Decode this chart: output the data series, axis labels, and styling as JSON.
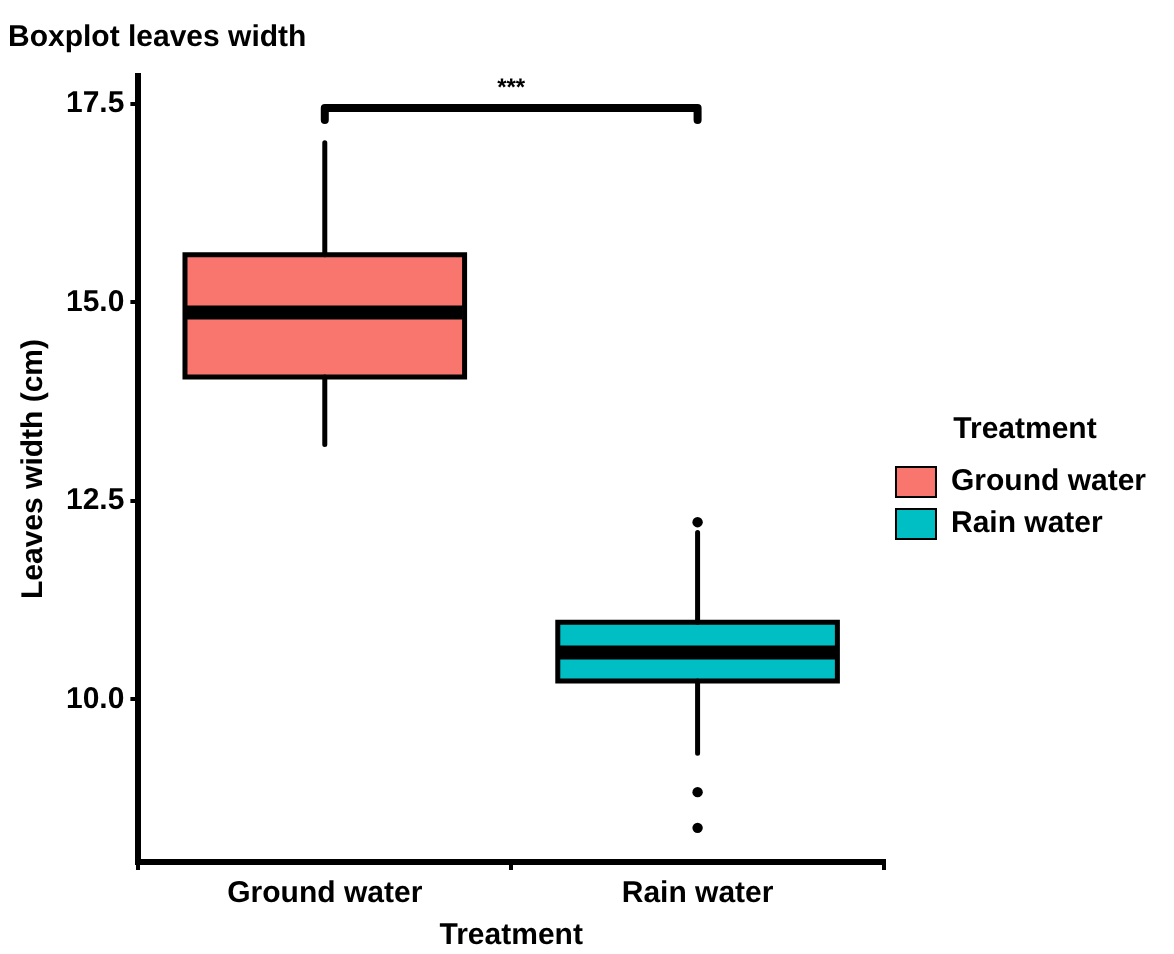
{
  "chart_data": {
    "type": "box",
    "title": "Boxplot leaves width",
    "xlabel": "Treatment",
    "ylabel": "Leaves width (cm)",
    "legend_title": "Treatment",
    "legend": "right",
    "grid": false,
    "categories": [
      "Ground water",
      "Rain water"
    ],
    "series": [
      {
        "name": "Ground water",
        "color": "#f8766d",
        "boxes": [
          {
            "low": 13.21,
            "q1": 14.06,
            "median": 14.87,
            "q3": 15.6,
            "high": 17.01
          },
          null
        ]
      },
      {
        "name": "Rain water",
        "color": "#00bfc4",
        "boxes": [
          null,
          {
            "low": 9.32,
            "q1": 10.23,
            "median": 10.59,
            "q3": 10.97,
            "high": 12.1,
            "outliers": [
              12.23,
              8.83,
              8.38
            ]
          }
        ]
      }
    ],
    "ylim": [
      7.95,
      17.85
    ],
    "yticks": [
      {
        "value": 10,
        "label": "10.0"
      },
      12.5,
      {
        "value": 15,
        "label": "15.0"
      },
      17.5
    ],
    "annotations": [
      "***"
    ]
  }
}
